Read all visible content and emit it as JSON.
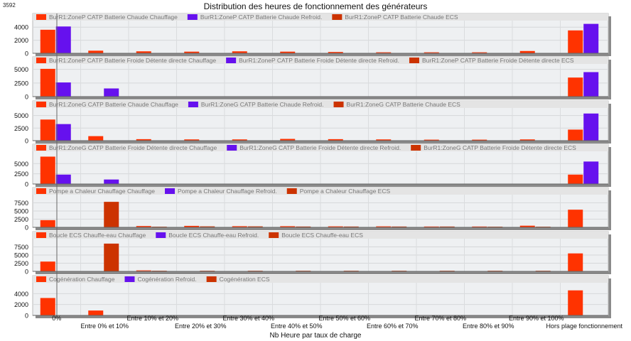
{
  "corner_value": "3592",
  "chart_data": {
    "type": "bar",
    "title": "Distribution des heures de fonctionnement des générateurs",
    "xlabel": "Nb Heure par taux de charge",
    "categories": [
      "0%",
      "Entre 0% et 10%",
      "Entre 10% et 20%",
      "Entre 20% et 30%",
      "Entre 30% et 40%",
      "Entre 40% et 50%",
      "Entre 50% et 60%",
      "Entre 60% et 70%",
      "Entre 70% et 80%",
      "Entre 80% et 90%",
      "Entre 90% et 100%",
      "Hors plage fonctionnement"
    ],
    "colors": [
      "#ff3300",
      "#6611ee",
      "#cc3300"
    ],
    "grid": true,
    "legend": "top-left",
    "panels": [
      {
        "ylim": [
          0,
          5000
        ],
        "yticks": [
          0,
          2000,
          4000
        ],
        "series": [
          {
            "name": "BurR1:ZoneP CATP Batterie Chaude Chauffage",
            "values": [
              3600,
              400,
              300,
              250,
              300,
              250,
              200,
              150,
              150,
              150,
              350,
              3500
            ]
          },
          {
            "name": "BurR1:ZoneP CATP Batterie Chaude Refroid.",
            "values": [
              4100,
              0,
              0,
              0,
              0,
              0,
              0,
              0,
              0,
              0,
              0,
              4500
            ]
          },
          {
            "name": "BurR1:ZoneP CATP Batterie Chaude ECS",
            "values": [
              0,
              0,
              0,
              0,
              0,
              0,
              0,
              0,
              0,
              0,
              0,
              0
            ]
          }
        ]
      },
      {
        "ylim": [
          0,
          6000
        ],
        "yticks": [
          0,
          2500,
          5000
        ],
        "series": [
          {
            "name": "BurR1:ZoneP CATP Batterie Froide Détente directe Chauffage",
            "values": [
              5100,
              0,
              0,
              0,
              0,
              0,
              0,
              0,
              0,
              0,
              0,
              3500
            ]
          },
          {
            "name": "BurR1:ZoneP CATP Batterie Froide Détente directe Refroid.",
            "values": [
              2600,
              1500,
              0,
              0,
              0,
              0,
              0,
              0,
              0,
              0,
              0,
              4500
            ]
          },
          {
            "name": "BurR1:ZoneP CATP Batterie Froide Détente directe ECS",
            "values": [
              0,
              0,
              0,
              0,
              0,
              0,
              0,
              0,
              0,
              0,
              0,
              0
            ]
          }
        ]
      },
      {
        "ylim": [
          0,
          6500
        ],
        "yticks": [
          0,
          2500,
          5000
        ],
        "series": [
          {
            "name": "BurR1:ZoneG CATP Batterie Chaude Chauffage",
            "values": [
              4200,
              900,
              300,
              250,
              250,
              350,
              300,
              250,
              200,
              200,
              250,
              2200
            ]
          },
          {
            "name": "BurR1:ZoneG CATP Batterie Chaude Refroid.",
            "values": [
              3300,
              0,
              0,
              0,
              0,
              0,
              0,
              0,
              0,
              0,
              0,
              5400
            ]
          },
          {
            "name": "BurR1:ZoneG CATP Batterie Chaude ECS",
            "values": [
              0,
              0,
              0,
              0,
              0,
              0,
              0,
              0,
              0,
              0,
              0,
              0
            ]
          }
        ]
      },
      {
        "ylim": [
          0,
          8000
        ],
        "yticks": [
          0,
          2500,
          5000
        ],
        "series": [
          {
            "name": "BurR1:ZoneG CATP Batterie Froide Détente directe Chauffage",
            "values": [
              6700,
              0,
              0,
              0,
              0,
              0,
              0,
              0,
              0,
              0,
              0,
              2300
            ]
          },
          {
            "name": "BurR1:ZoneG CATP Batterie Froide Détente directe Refroid.",
            "values": [
              2300,
              1100,
              0,
              0,
              0,
              0,
              0,
              0,
              0,
              0,
              0,
              5500
            ]
          },
          {
            "name": "BurR1:ZoneG CATP Batterie Froide Détente directe ECS",
            "values": [
              0,
              0,
              0,
              0,
              0,
              0,
              0,
              0,
              0,
              0,
              0,
              0
            ]
          }
        ]
      },
      {
        "ylim": [
          0,
          10000
        ],
        "yticks": [
          0,
          2500,
          5000,
          7500
        ],
        "series": [
          {
            "name": "Pompe a Chaleur Chauffage Chauffage",
            "values": [
              2200,
              0,
              400,
              450,
              350,
              350,
              300,
              300,
              250,
              250,
              500,
              5400
            ]
          },
          {
            "name": "Pompe a Chaleur Chauffage Refroid.",
            "values": [
              0,
              0,
              0,
              0,
              0,
              0,
              0,
              0,
              0,
              0,
              0,
              0
            ]
          },
          {
            "name": "Pompe a Chaleur Chauffage ECS",
            "values": [
              0,
              7800,
              200,
              300,
              300,
              250,
              250,
              250,
              250,
              200,
              200,
              0
            ]
          }
        ]
      },
      {
        "ylim": [
          0,
          10000
        ],
        "yticks": [
          0,
          2500,
          5000,
          7500
        ],
        "series": [
          {
            "name": "Boucle ECS Chauffe-eau Chauffage",
            "values": [
              3000,
              0,
              300,
              0,
              0,
              0,
              0,
              0,
              0,
              0,
              0,
              5500
            ]
          },
          {
            "name": "Boucle ECS Chauffe-eau Refroid.",
            "values": [
              0,
              0,
              0,
              0,
              0,
              0,
              0,
              0,
              0,
              0,
              0,
              0
            ]
          },
          {
            "name": "Boucle ECS Chauffe-eau ECS",
            "values": [
              0,
              8500,
              200,
              200,
              200,
              200,
              200,
              200,
              200,
              200,
              200,
              0
            ]
          }
        ]
      },
      {
        "ylim": [
          0,
          6000
        ],
        "yticks": [
          0,
          2000,
          4000
        ],
        "series": [
          {
            "name": "Cogénération Chauffage",
            "values": [
              3200,
              900,
              0,
              0,
              0,
              0,
              0,
              0,
              0,
              0,
              0,
              4600
            ]
          },
          {
            "name": "Cogénération Refroid.",
            "values": [
              0,
              0,
              0,
              0,
              0,
              0,
              0,
              0,
              0,
              0,
              0,
              0
            ]
          },
          {
            "name": "Cogénération ECS",
            "values": [
              0,
              0,
              0,
              0,
              0,
              0,
              0,
              0,
              0,
              0,
              0,
              0
            ]
          }
        ]
      }
    ]
  }
}
